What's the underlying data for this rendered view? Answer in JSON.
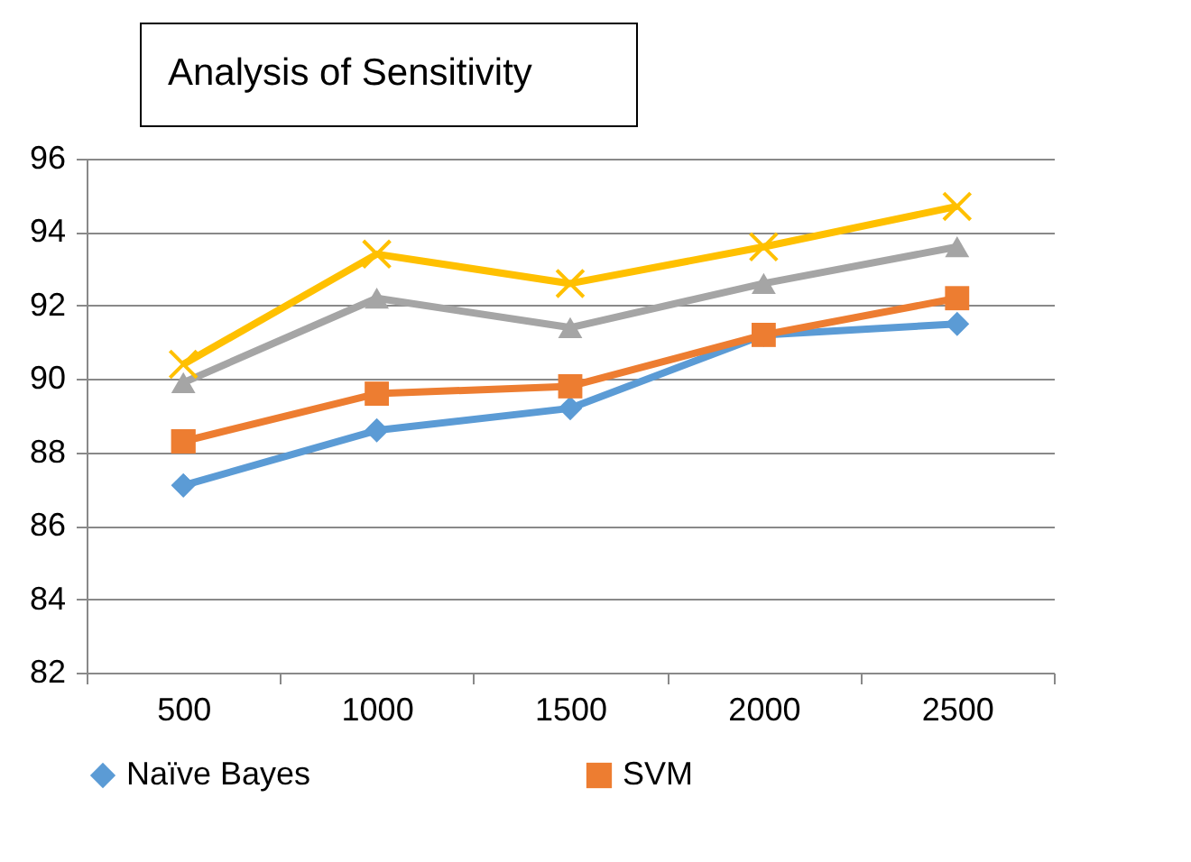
{
  "chart_data": {
    "type": "line",
    "title": "Analysis of Sensitivity",
    "categories": [
      "500",
      "1000",
      "1500",
      "2000",
      "2500"
    ],
    "series": [
      {
        "name": "Naïve Bayes",
        "color": "#5b9bd5",
        "marker": "diamond",
        "values": [
          87.1,
          88.6,
          89.2,
          91.2,
          91.5
        ]
      },
      {
        "name": "SVM",
        "color": "#ed7d31",
        "marker": "square",
        "values": [
          88.3,
          89.6,
          89.8,
          91.2,
          92.2
        ]
      },
      {
        "color": "#a5a5a5",
        "marker": "triangle",
        "values": [
          89.9,
          92.2,
          91.4,
          92.6,
          93.6
        ]
      },
      {
        "color": "#ffc000",
        "marker": "cross",
        "values": [
          90.4,
          93.4,
          92.6,
          93.6,
          94.7
        ]
      }
    ],
    "ylim": [
      82,
      96
    ],
    "yticks": [
      82,
      84,
      86,
      88,
      90,
      92,
      94,
      96
    ],
    "grid": "y",
    "legend": "bottom",
    "line_style": "solid"
  }
}
